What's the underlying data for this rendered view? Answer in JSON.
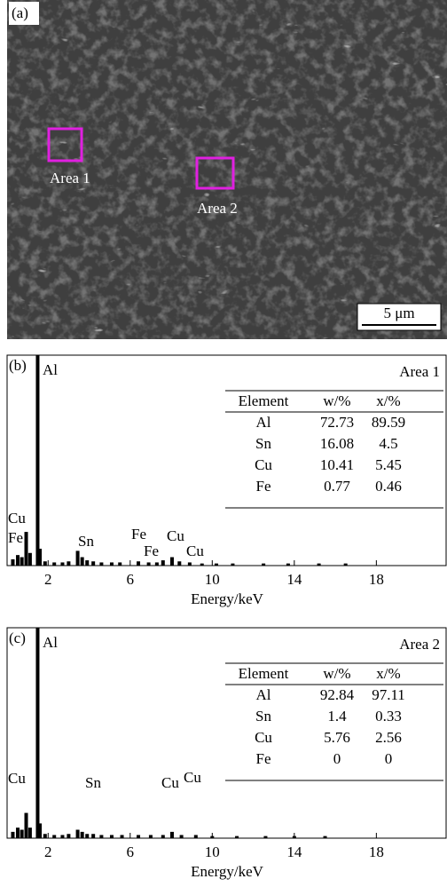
{
  "image": {
    "label": "(a)",
    "areas": [
      "Area 1",
      "Area 2"
    ],
    "scale_bar": "5 μm"
  },
  "chart_data": [
    {
      "type": "bar",
      "label": "(b)",
      "xlabel": "Energy/keV",
      "x": [
        0.28,
        0.52,
        0.72,
        0.93,
        1.12,
        1.49,
        1.6,
        1.85,
        2.3,
        2.7,
        3.0,
        3.44,
        3.66,
        3.9,
        4.2,
        4.6,
        5.1,
        5.5,
        6.4,
        6.9,
        7.3,
        7.6,
        8.04,
        8.4,
        8.9,
        9.5,
        10.2,
        11.0,
        12.5,
        13.7,
        15.2,
        16.5
      ],
      "values": [
        3,
        5,
        4,
        16,
        6,
        100,
        8,
        2,
        1.5,
        1.5,
        2,
        7,
        4,
        2.5,
        2,
        1.5,
        1.5,
        1.5,
        2,
        1.5,
        1.5,
        2.5,
        4,
        2,
        1.5,
        1,
        1,
        1,
        1,
        1,
        1,
        1
      ],
      "xlim": [
        0,
        21.4
      ],
      "ylim": [
        0,
        100
      ],
      "xticks": [
        2,
        6,
        10,
        14,
        18
      ],
      "color": "#000000",
      "annotations": [
        "Al",
        "Cu",
        "Fe",
        "Sn",
        "Fe",
        "Cu",
        "Fe",
        "Cu"
      ],
      "table": {
        "title": "Area 1",
        "columns": [
          "Element",
          "w/%",
          "x/%"
        ],
        "rows": [
          [
            "Al",
            72.73,
            89.59
          ],
          [
            "Sn",
            16.08,
            4.5
          ],
          [
            "Cu",
            10.41,
            5.45
          ],
          [
            "Fe",
            0.77,
            0.46
          ]
        ]
      }
    },
    {
      "type": "bar",
      "label": "(c)",
      "xlabel": "Energy/keV",
      "x": [
        0.28,
        0.52,
        0.72,
        0.93,
        1.12,
        1.49,
        1.6,
        1.85,
        2.3,
        2.7,
        3.0,
        3.44,
        3.66,
        3.9,
        4.2,
        4.6,
        5.1,
        5.6,
        6.4,
        7.0,
        7.6,
        8.04,
        8.5,
        9.2,
        10.0,
        11.2,
        12.6,
        14.0,
        15.5
      ],
      "values": [
        3,
        5,
        4,
        12,
        5,
        100,
        7,
        2,
        1.5,
        1.5,
        2,
        4,
        3,
        2,
        2,
        1.5,
        1.5,
        1.5,
        1.5,
        1.5,
        1.5,
        3,
        1.5,
        1.5,
        1,
        1,
        1,
        1,
        1
      ],
      "xlim": [
        0,
        21.4
      ],
      "ylim": [
        0,
        100
      ],
      "xticks": [
        2,
        6,
        10,
        14,
        18
      ],
      "color": "#000000",
      "annotations": [
        "Al",
        "Cu",
        "Sn",
        "Cu",
        "Cu"
      ],
      "table": {
        "title": "Area 2",
        "columns": [
          "Element",
          "w/%",
          "x/%"
        ],
        "rows": [
          [
            "Al",
            92.84,
            97.11
          ],
          [
            "Sn",
            1.4,
            0.33
          ],
          [
            "Cu",
            5.76,
            2.56
          ],
          [
            "Fe",
            0,
            0
          ]
        ]
      }
    }
  ]
}
